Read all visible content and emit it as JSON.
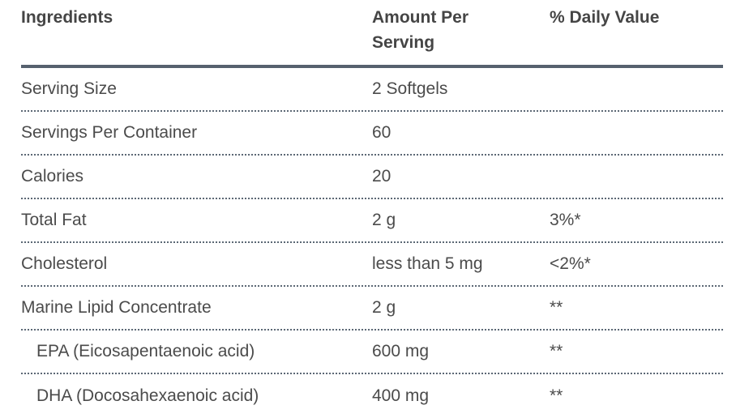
{
  "table": {
    "header": {
      "ingredients": "Ingredients",
      "amount_per_serving": "Amount Per Serving",
      "daily_value": "% Daily Value"
    },
    "rows": [
      {
        "ingredient": "Serving Size",
        "amount": "2 Softgels",
        "daily_value": ""
      },
      {
        "ingredient": "Servings Per Container",
        "amount": "60",
        "daily_value": ""
      },
      {
        "ingredient": "Calories",
        "amount": "20",
        "daily_value": ""
      },
      {
        "ingredient": "Total Fat",
        "amount": "2 g",
        "daily_value": "3%*"
      },
      {
        "ingredient": "Cholesterol",
        "amount": "less than 5 mg",
        "daily_value": "<2%*"
      },
      {
        "ingredient": "Marine Lipid Concentrate",
        "amount": "2 g",
        "daily_value": "**"
      },
      {
        "ingredient": "EPA (Eicosapentaenoic acid)",
        "amount": "600 mg",
        "daily_value": "**"
      },
      {
        "ingredient": "DHA (Docosahexaenoic acid)",
        "amount": "400 mg",
        "daily_value": "**"
      }
    ],
    "colors": {
      "body_text": "#4b4b4b",
      "header_text": "#454545",
      "header_rule": "#56616e",
      "row_rule_dotted": "#5c6875",
      "background": "#ffffff"
    }
  },
  "chart_data": {
    "type": "table",
    "columns": [
      "Ingredients",
      "Amount Per Serving",
      "% Daily Value"
    ],
    "rows": [
      [
        "Serving Size",
        "2 Softgels",
        ""
      ],
      [
        "Servings Per Container",
        "60",
        ""
      ],
      [
        "Calories",
        "20",
        ""
      ],
      [
        "Total Fat",
        "2 g",
        "3%*"
      ],
      [
        "Cholesterol",
        "less than 5 mg",
        "<2%*"
      ],
      [
        "Marine Lipid Concentrate",
        "2 g",
        "**"
      ],
      [
        "EPA (Eicosapentaenoic acid)",
        "600 mg",
        "**"
      ],
      [
        "DHA (Docosahexaenoic acid)",
        "400 mg",
        "**"
      ]
    ]
  }
}
